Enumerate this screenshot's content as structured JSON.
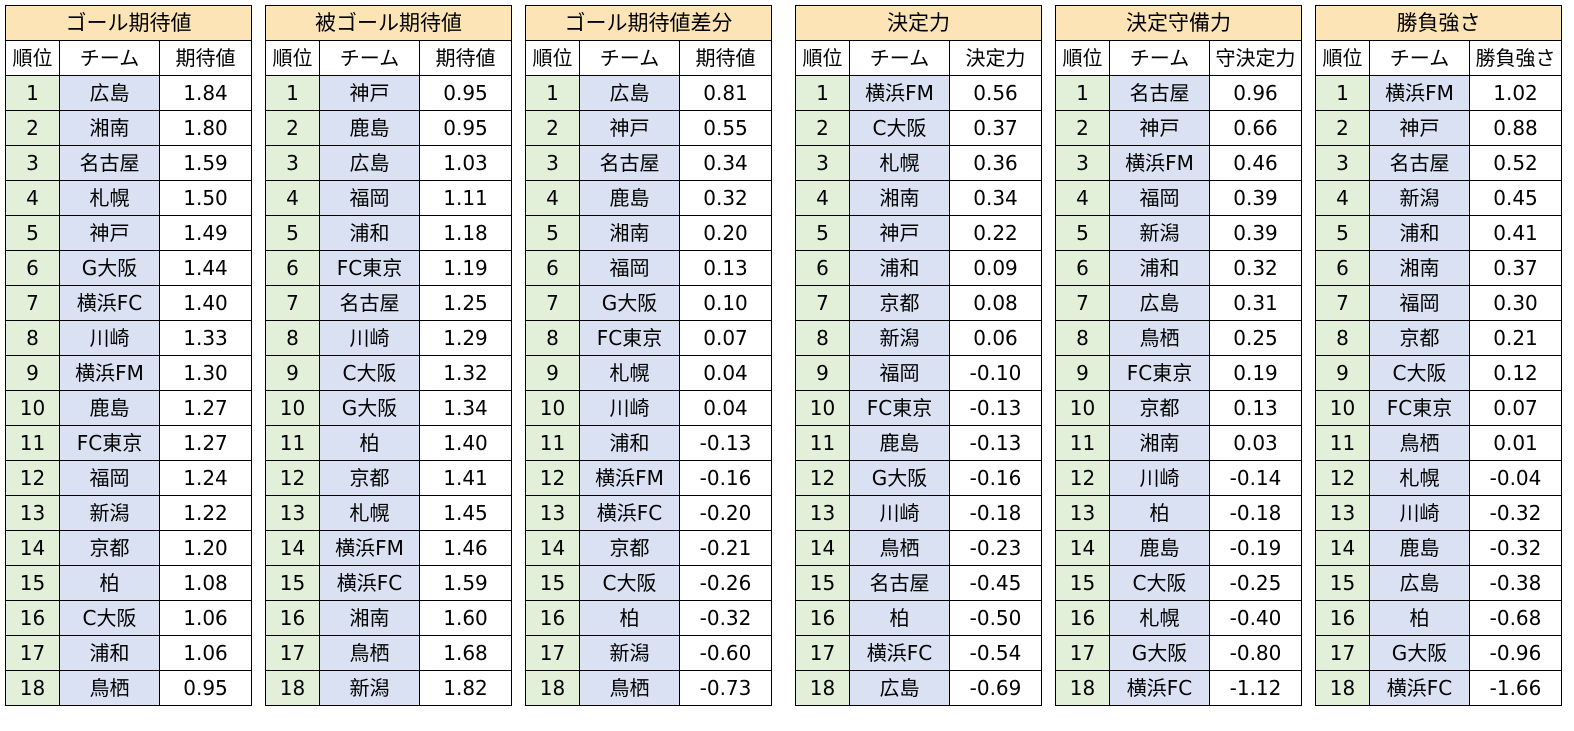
{
  "tables": [
    {
      "title": "ゴール期待値",
      "headers": [
        "順位",
        "チーム",
        "期待値"
      ],
      "rows": [
        [
          "1",
          "広島",
          "1.84"
        ],
        [
          "2",
          "湘南",
          "1.80"
        ],
        [
          "3",
          "名古屋",
          "1.59"
        ],
        [
          "4",
          "札幌",
          "1.50"
        ],
        [
          "5",
          "神戸",
          "1.49"
        ],
        [
          "6",
          "G大阪",
          "1.44"
        ],
        [
          "7",
          "横浜FC",
          "1.40"
        ],
        [
          "8",
          "川崎",
          "1.33"
        ],
        [
          "9",
          "横浜FM",
          "1.30"
        ],
        [
          "10",
          "鹿島",
          "1.27"
        ],
        [
          "11",
          "FC東京",
          "1.27"
        ],
        [
          "12",
          "福岡",
          "1.24"
        ],
        [
          "13",
          "新潟",
          "1.22"
        ],
        [
          "14",
          "京都",
          "1.20"
        ],
        [
          "15",
          "柏",
          "1.08"
        ],
        [
          "16",
          "C大阪",
          "1.06"
        ],
        [
          "17",
          "浦和",
          "1.06"
        ],
        [
          "18",
          "鳥栖",
          "0.95"
        ]
      ]
    },
    {
      "title": "被ゴール期待値",
      "headers": [
        "順位",
        "チーム",
        "期待値"
      ],
      "rows": [
        [
          "1",
          "神戸",
          "0.95"
        ],
        [
          "2",
          "鹿島",
          "0.95"
        ],
        [
          "3",
          "広島",
          "1.03"
        ],
        [
          "4",
          "福岡",
          "1.11"
        ],
        [
          "5",
          "浦和",
          "1.18"
        ],
        [
          "6",
          "FC東京",
          "1.19"
        ],
        [
          "7",
          "名古屋",
          "1.25"
        ],
        [
          "8",
          "川崎",
          "1.29"
        ],
        [
          "9",
          "C大阪",
          "1.32"
        ],
        [
          "10",
          "G大阪",
          "1.34"
        ],
        [
          "11",
          "柏",
          "1.40"
        ],
        [
          "12",
          "京都",
          "1.41"
        ],
        [
          "13",
          "札幌",
          "1.45"
        ],
        [
          "14",
          "横浜FM",
          "1.46"
        ],
        [
          "15",
          "横浜FC",
          "1.59"
        ],
        [
          "16",
          "湘南",
          "1.60"
        ],
        [
          "17",
          "鳥栖",
          "1.68"
        ],
        [
          "18",
          "新潟",
          "1.82"
        ]
      ]
    },
    {
      "title": "ゴール期待値差分",
      "headers": [
        "順位",
        "チーム",
        "期待値"
      ],
      "rows": [
        [
          "1",
          "広島",
          "0.81"
        ],
        [
          "2",
          "神戸",
          "0.55"
        ],
        [
          "3",
          "名古屋",
          "0.34"
        ],
        [
          "4",
          "鹿島",
          "0.32"
        ],
        [
          "5",
          "湘南",
          "0.20"
        ],
        [
          "6",
          "福岡",
          "0.13"
        ],
        [
          "7",
          "G大阪",
          "0.10"
        ],
        [
          "8",
          "FC東京",
          "0.07"
        ],
        [
          "9",
          "札幌",
          "0.04"
        ],
        [
          "10",
          "川崎",
          "0.04"
        ],
        [
          "11",
          "浦和",
          "-0.13"
        ],
        [
          "12",
          "横浜FM",
          "-0.16"
        ],
        [
          "13",
          "横浜FC",
          "-0.20"
        ],
        [
          "14",
          "京都",
          "-0.21"
        ],
        [
          "15",
          "C大阪",
          "-0.26"
        ],
        [
          "16",
          "柏",
          "-0.32"
        ],
        [
          "17",
          "新潟",
          "-0.60"
        ],
        [
          "18",
          "鳥栖",
          "-0.73"
        ]
      ]
    },
    {
      "title": "決定力",
      "headers": [
        "順位",
        "チーム",
        "決定力"
      ],
      "rows": [
        [
          "1",
          "横浜FM",
          "0.56"
        ],
        [
          "2",
          "C大阪",
          "0.37"
        ],
        [
          "3",
          "札幌",
          "0.36"
        ],
        [
          "4",
          "湘南",
          "0.34"
        ],
        [
          "5",
          "神戸",
          "0.22"
        ],
        [
          "6",
          "浦和",
          "0.09"
        ],
        [
          "7",
          "京都",
          "0.08"
        ],
        [
          "8",
          "新潟",
          "0.06"
        ],
        [
          "9",
          "福岡",
          "-0.10"
        ],
        [
          "10",
          "FC東京",
          "-0.13"
        ],
        [
          "11",
          "鹿島",
          "-0.13"
        ],
        [
          "12",
          "G大阪",
          "-0.16"
        ],
        [
          "13",
          "川崎",
          "-0.18"
        ],
        [
          "14",
          "鳥栖",
          "-0.23"
        ],
        [
          "15",
          "名古屋",
          "-0.45"
        ],
        [
          "16",
          "柏",
          "-0.50"
        ],
        [
          "17",
          "横浜FC",
          "-0.54"
        ],
        [
          "18",
          "広島",
          "-0.69"
        ]
      ]
    },
    {
      "title": "決定守備力",
      "headers": [
        "順位",
        "チーム",
        "守決定力"
      ],
      "rows": [
        [
          "1",
          "名古屋",
          "0.96"
        ],
        [
          "2",
          "神戸",
          "0.66"
        ],
        [
          "3",
          "横浜FM",
          "0.46"
        ],
        [
          "4",
          "福岡",
          "0.39"
        ],
        [
          "5",
          "新潟",
          "0.39"
        ],
        [
          "6",
          "浦和",
          "0.32"
        ],
        [
          "7",
          "広島",
          "0.31"
        ],
        [
          "8",
          "鳥栖",
          "0.25"
        ],
        [
          "9",
          "FC東京",
          "0.19"
        ],
        [
          "10",
          "京都",
          "0.13"
        ],
        [
          "11",
          "湘南",
          "0.03"
        ],
        [
          "12",
          "川崎",
          "-0.14"
        ],
        [
          "13",
          "柏",
          "-0.18"
        ],
        [
          "14",
          "鹿島",
          "-0.19"
        ],
        [
          "15",
          "C大阪",
          "-0.25"
        ],
        [
          "16",
          "札幌",
          "-0.40"
        ],
        [
          "17",
          "G大阪",
          "-0.80"
        ],
        [
          "18",
          "横浜FC",
          "-1.12"
        ]
      ]
    },
    {
      "title": "勝負強さ",
      "headers": [
        "順位",
        "チーム",
        "勝負強さ"
      ],
      "rows": [
        [
          "1",
          "横浜FM",
          "1.02"
        ],
        [
          "2",
          "神戸",
          "0.88"
        ],
        [
          "3",
          "名古屋",
          "0.52"
        ],
        [
          "4",
          "新潟",
          "0.45"
        ],
        [
          "5",
          "浦和",
          "0.41"
        ],
        [
          "6",
          "湘南",
          "0.37"
        ],
        [
          "7",
          "福岡",
          "0.30"
        ],
        [
          "8",
          "京都",
          "0.21"
        ],
        [
          "9",
          "C大阪",
          "0.12"
        ],
        [
          "10",
          "FC東京",
          "0.07"
        ],
        [
          "11",
          "鳥栖",
          "0.01"
        ],
        [
          "12",
          "札幌",
          "-0.04"
        ],
        [
          "13",
          "川崎",
          "-0.32"
        ],
        [
          "14",
          "鹿島",
          "-0.32"
        ],
        [
          "15",
          "広島",
          "-0.38"
        ],
        [
          "16",
          "柏",
          "-0.68"
        ],
        [
          "17",
          "G大阪",
          "-0.96"
        ],
        [
          "18",
          "横浜FC",
          "-1.66"
        ]
      ]
    }
  ]
}
